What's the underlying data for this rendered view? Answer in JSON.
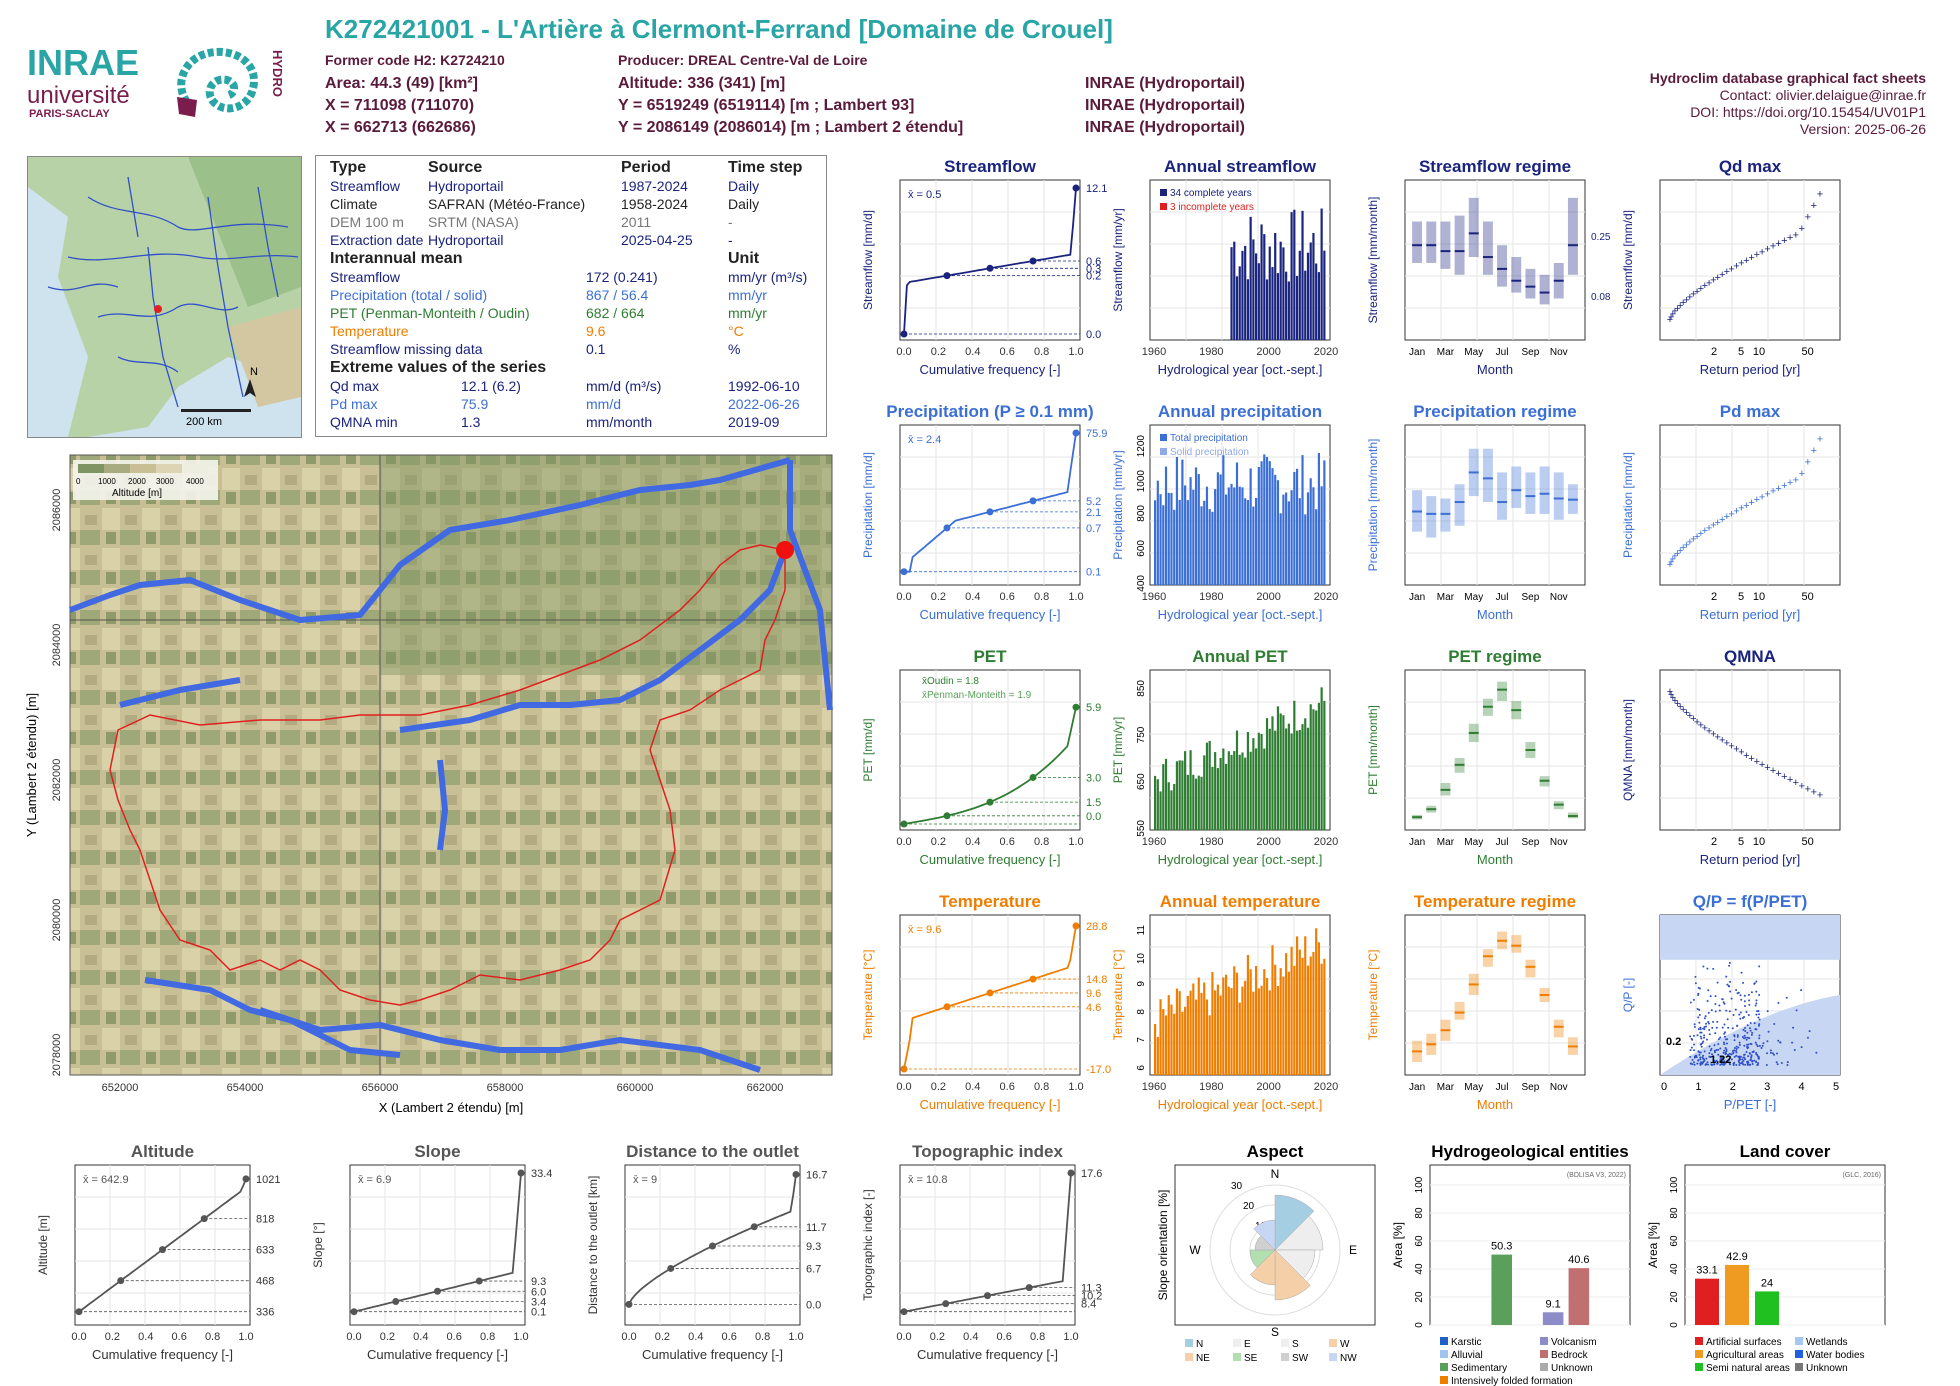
{
  "header": {
    "title": "K272421001 - L'Artière à Clermont-Ferrand [Domaine de Crouel]",
    "former_code": "Former code H2: K2724210",
    "producer": "Producer: DREAL Centre-Val de Loire",
    "area": "Area: 44.3 (49) [km²]",
    "x_l93": "X = 711098 (711070)",
    "x_l2": "X = 662713 (662686)",
    "altitude": "Altitude: 336 (341) [m]",
    "y_l93": "Y = 6519249 (6519114) [m ; Lambert 93]",
    "y_l2": "Y = 2086149 (2086014) [m ; Lambert 2 étendu]",
    "src1": "INRAE (Hydroportail)",
    "src2": "INRAE (Hydroportail)",
    "src3": "INRAE (Hydroportail)"
  },
  "logos": {
    "inrae": "INRAE",
    "univ": "université",
    "paris": "PARIS-SACLAY",
    "hydro": "HYDRO"
  },
  "fact_sheet": {
    "line1": "Hydroclim database graphical fact sheets",
    "line2": "Contact: olivier.delaigue@inrae.fr",
    "line3": "DOI: https://doi.org/10.15454/UV01P1",
    "line4": "Version: 2025-06-26"
  },
  "info_table": {
    "head": [
      "Type",
      "Source",
      "Period",
      "Time step"
    ],
    "rows": [
      [
        "Streamflow",
        "Hydroportail",
        "1987-2024",
        "Daily"
      ],
      [
        "Climate",
        "SAFRAN (Météo-France)",
        "1958-2024",
        "Daily"
      ],
      [
        "DEM 100 m",
        "SRTM (NASA)",
        "2011",
        "-"
      ],
      [
        "Extraction date",
        "Hydroportail",
        "2025-04-25",
        "-"
      ]
    ],
    "mean_title": "Interannual mean",
    "unit_title": "Unit",
    "means": [
      [
        "Streamflow",
        "172 (0.241)",
        "mm/yr (m³/s)"
      ],
      [
        "Precipitation (total / solid)",
        "867 / 56.4",
        "mm/yr"
      ],
      [
        "PET (Penman-Monteith / Oudin)",
        "682 / 664",
        "mm/yr"
      ],
      [
        "Temperature",
        "9.6",
        "°C"
      ],
      [
        "Streamflow missing data",
        "0.1",
        "%"
      ]
    ],
    "extreme_title": "Extreme values of the series",
    "extremes": [
      [
        "Qd max",
        "12.1 (6.2)",
        "mm/d (m³/s)",
        "1992-06-10"
      ],
      [
        "Pd max",
        "75.9",
        "mm/d",
        "2022-06-26"
      ],
      [
        "QMNA min",
        "1.3",
        "mm/month",
        "2019-09"
      ]
    ]
  },
  "inset_map": {
    "north": "N",
    "scale": "200 km"
  },
  "main_map": {
    "xlabel": "X (Lambert 2 étendu) [m]",
    "ylabel": "Y (Lambert 2 étendu) [m]",
    "xticks": [
      "652000",
      "654000",
      "656000",
      "658000",
      "660000",
      "662000"
    ],
    "yticks": [
      "2078000",
      "2080000",
      "2082000",
      "2084000",
      "2086000"
    ],
    "legend_ticks": [
      "0",
      "1000",
      "2000",
      "3000",
      "4000"
    ],
    "legend_title": "Altitude [m]"
  },
  "colors": {
    "flow": "#1a237e",
    "precip": "#3b6fd6",
    "pet": "#2e7d32",
    "temp": "#ef7d00",
    "river": "#4169e1",
    "basin": "#e02020"
  },
  "chart_data": [
    {
      "id": "streamflow",
      "type": "line",
      "title": "Streamflow",
      "xlabel": "Cumulative frequency [-]",
      "ylabel": "Streamflow [mm/d]",
      "log": true,
      "mean": "x̄ = 0.5",
      "right_ticks": [
        "12.1",
        "0.6",
        "0.3",
        "0.2",
        "0.0"
      ],
      "xticks": [
        "0.0",
        "0.2",
        "0.4",
        "0.6",
        "0.8",
        "1.0"
      ],
      "color": "#1a237e"
    },
    {
      "id": "annual_streamflow",
      "type": "bar",
      "title": "Annual streamflow",
      "xlabel": "Hydrological year [oct.-sept.]",
      "ylabel": "Streamflow [mm/yr]",
      "ylim": [
        0,
        350
      ],
      "xticks": [
        "1960",
        "1980",
        "2000",
        "2020"
      ],
      "legend": [
        "34 complete years",
        "3 incomplete years"
      ],
      "color": "#1a237e"
    },
    {
      "id": "streamflow_regime",
      "type": "box",
      "title": "Streamflow regime",
      "xlabel": "Month",
      "ylabel": "Streamflow [mm/month]",
      "months": [
        "Jan",
        "Mar",
        "May",
        "Jul",
        "Sep",
        "Nov"
      ],
      "right_ticks": [
        "0.25",
        "0.08"
      ],
      "color": "#1a237e",
      "values": [
        [
          12,
          15,
          19
        ],
        [
          12,
          15,
          19
        ],
        [
          11,
          14,
          19
        ],
        [
          10,
          14,
          20
        ],
        [
          13,
          17,
          23
        ],
        [
          10,
          13,
          19
        ],
        [
          8,
          11,
          15
        ],
        [
          7,
          9,
          13
        ],
        [
          6,
          8,
          11
        ],
        [
          5,
          7,
          10
        ],
        [
          6,
          9,
          12
        ],
        [
          10,
          15,
          23
        ]
      ]
    },
    {
      "id": "qd_max",
      "type": "scatter",
      "title": "Qd max",
      "xlabel": "Return period [yr]",
      "ylabel": "Streamflow [mm/d]",
      "color": "#1a237e",
      "xticks": [
        "2",
        "5",
        "10",
        "50"
      ]
    },
    {
      "id": "precip",
      "type": "line",
      "title": "Precipitation (P ≥ 0.1 mm)",
      "xlabel": "Cumulative frequency [-]",
      "ylabel": "Precipitation [mm/d]",
      "mean": "x̄ = 2.4",
      "right_ticks": [
        "75.9",
        "5.2",
        "2.1",
        "0.7",
        "0.1"
      ],
      "xticks": [
        "0.0",
        "0.2",
        "0.4",
        "0.6",
        "0.8",
        "1.0"
      ],
      "color": "#3b6fd6"
    },
    {
      "id": "annual_precip",
      "type": "bar",
      "title": "Annual precipitation",
      "xlabel": "Hydrological year [oct.-sept.]",
      "ylabel": "Precipitation [mm/yr]",
      "yticks": [
        "400",
        "600",
        "800",
        "1000",
        "1200"
      ],
      "xticks": [
        "1960",
        "1980",
        "2000",
        "2020"
      ],
      "legend": [
        "Total precipitation",
        "Solid precipitation"
      ],
      "color": "#3b6fd6"
    },
    {
      "id": "precip_regime",
      "type": "box",
      "title": "Precipitation regime",
      "xlabel": "Month",
      "ylabel": "Precipitation [mm/month]",
      "months": [
        "Jan",
        "Mar",
        "May",
        "Jul",
        "Sep",
        "Nov"
      ],
      "color": "#3b6fd6",
      "values": [
        [
          40,
          57,
          75
        ],
        [
          35,
          55,
          70
        ],
        [
          40,
          55,
          68
        ],
        [
          45,
          65,
          80
        ],
        [
          70,
          90,
          110
        ],
        [
          65,
          85,
          110
        ],
        [
          50,
          65,
          90
        ],
        [
          60,
          75,
          95
        ],
        [
          55,
          70,
          90
        ],
        [
          55,
          72,
          95
        ],
        [
          50,
          68,
          90
        ],
        [
          55,
          67,
          80
        ]
      ]
    },
    {
      "id": "pd_max",
      "type": "scatter",
      "title": "Pd max",
      "xlabel": "Return period [yr]",
      "ylabel": "Precipitation [mm/d]",
      "color": "#3b6fd6",
      "xticks": [
        "2",
        "5",
        "10",
        "50"
      ]
    },
    {
      "id": "pet",
      "type": "line",
      "title": "PET",
      "xlabel": "Cumulative frequency [-]",
      "ylabel": "PET [mm/d]",
      "mean1": "x̄Oudin = 1.8",
      "mean2": "x̄Penman-Monteith = 1.9",
      "right_ticks": [
        "5.9",
        "3.0",
        "1.5",
        "0.0"
      ],
      "xticks": [
        "0.0",
        "0.2",
        "0.4",
        "0.6",
        "0.8",
        "1.0"
      ],
      "color": "#2e7d32"
    },
    {
      "id": "annual_pet",
      "type": "bar",
      "title": "Annual PET",
      "xlabel": "Hydrological year [oct.-sept.]",
      "ylabel": "PET [mm/yr]",
      "yticks": [
        "550",
        "650",
        "750",
        "850"
      ],
      "xticks": [
        "1960",
        "1980",
        "2000",
        "2020"
      ],
      "color": "#2e7d32"
    },
    {
      "id": "pet_regime",
      "type": "box",
      "title": "PET regime",
      "xlabel": "Month",
      "ylabel": "PET [mm/month]",
      "months": [
        "Jan",
        "Mar",
        "May",
        "Jul",
        "Sep",
        "Nov"
      ],
      "color": "#2e7d32",
      "values": [
        [
          4,
          6,
          8
        ],
        [
          10,
          13,
          16
        ],
        [
          25,
          30,
          36
        ],
        [
          45,
          52,
          58
        ],
        [
          72,
          80,
          88
        ],
        [
          95,
          103,
          110
        ],
        [
          108,
          118,
          125
        ],
        [
          92,
          100,
          108
        ],
        [
          58,
          65,
          72
        ],
        [
          33,
          38,
          42
        ],
        [
          13,
          17,
          20
        ],
        [
          5,
          7,
          10
        ]
      ]
    },
    {
      "id": "qmna",
      "type": "scatter",
      "title": "QMNA",
      "xlabel": "Return period [yr]",
      "ylabel": "QMNA [mm/month]",
      "color": "#1a237e",
      "xticks": [
        "2",
        "5",
        "10",
        "50"
      ]
    },
    {
      "id": "temp",
      "type": "line",
      "title": "Temperature",
      "xlabel": "Cumulative frequency [-]",
      "ylabel": "Temperature [°C]",
      "mean": "x̄ = 9.6",
      "right_ticks": [
        "28.8",
        "14.8",
        "9.6",
        "4.6",
        "-17.0"
      ],
      "xticks": [
        "0.0",
        "0.2",
        "0.4",
        "0.6",
        "0.8",
        "1.0"
      ],
      "color": "#ef7d00"
    },
    {
      "id": "annual_temp",
      "type": "bar",
      "title": "Annual temperature",
      "xlabel": "Hydrological year [oct.-sept.]",
      "ylabel": "Temperature [°C]",
      "yticks": [
        "6",
        "7",
        "8",
        "9",
        "10",
        "11"
      ],
      "xticks": [
        "1960",
        "1980",
        "2000",
        "2020"
      ],
      "color": "#ef7d00"
    },
    {
      "id": "temp_regime",
      "type": "box",
      "title": "Temperature regime",
      "xlabel": "Month",
      "ylabel": "Temperature [°C]",
      "months": [
        "Jan",
        "Mar",
        "May",
        "Jul",
        "Sep",
        "Nov"
      ],
      "color": "#ef7d00",
      "values": [
        [
          1,
          2.5,
          4
        ],
        [
          2,
          3.5,
          5
        ],
        [
          4,
          5.5,
          7
        ],
        [
          7,
          8,
          9.5
        ],
        [
          10.5,
          12,
          13.5
        ],
        [
          14.5,
          16,
          17
        ],
        [
          17,
          18.2,
          19.5
        ],
        [
          16.5,
          17.5,
          19
        ],
        [
          13,
          14.5,
          15.5
        ],
        [
          9.5,
          10.5,
          11.5
        ],
        [
          4.5,
          6,
          7
        ],
        [
          2,
          3.2,
          4.5
        ]
      ]
    },
    {
      "id": "qp_ppet",
      "type": "scatter",
      "title": "Q/P = f(P/PET)",
      "xlabel": "P/PET [-]",
      "ylabel": "Q/P [-]",
      "color": "#3b6fd6",
      "xticks": [
        "0",
        "1",
        "2",
        "3",
        "4",
        "5"
      ],
      "labels": [
        "0.2",
        "1.22"
      ]
    },
    {
      "id": "altitude",
      "type": "line",
      "title": "Altitude",
      "xlabel": "Cumulative frequency [-]",
      "ylabel": "Altitude [m]",
      "mean": "x̄ = 642.9",
      "right_ticks": [
        "1021",
        "818",
        "633",
        "468",
        "336"
      ],
      "xticks": [
        "0.0",
        "0.2",
        "0.4",
        "0.6",
        "0.8",
        "1.0"
      ],
      "color": "#555555"
    },
    {
      "id": "slope",
      "type": "line",
      "title": "Slope",
      "xlabel": "Cumulative frequency [-]",
      "ylabel": "Slope [°]",
      "mean": "x̄ = 6.9",
      "right_ticks": [
        "33.4",
        "9.3",
        "6.0",
        "3.4",
        "0.1"
      ],
      "xticks": [
        "0.0",
        "0.2",
        "0.4",
        "0.6",
        "0.8",
        "1.0"
      ],
      "color": "#555555"
    },
    {
      "id": "distance",
      "type": "line",
      "title": "Distance to the outlet",
      "xlabel": "Cumulative frequency [-]",
      "ylabel": "Distance to the outlet [km]",
      "mean": "x̄ = 9",
      "right_ticks": [
        "16.7",
        "11.7",
        "9.3",
        "6.7",
        "0.0"
      ],
      "xticks": [
        "0.0",
        "0.2",
        "0.4",
        "0.6",
        "0.8",
        "1.0"
      ],
      "color": "#555555"
    },
    {
      "id": "topo",
      "type": "line",
      "title": "Topographic index",
      "xlabel": "Cumulative frequency [-]",
      "ylabel": "Topographic index [-]",
      "mean": "x̄ = 10.8",
      "right_ticks": [
        "17.6",
        "11.3",
        "10.2",
        "8.4"
      ],
      "xticks": [
        "0.0",
        "0.2",
        "0.4",
        "0.6",
        "0.8",
        "1.0"
      ],
      "color": "#555555"
    },
    {
      "id": "aspect",
      "type": "pie",
      "title": "Aspect",
      "ylabel": "Slope orientation [%]",
      "directions": [
        "N",
        "E",
        "S",
        "W"
      ],
      "legend": [
        "N",
        "E",
        "S",
        "W",
        "NE",
        "SE",
        "SW",
        "NW"
      ],
      "rings": [
        "10",
        "20",
        "30"
      ]
    },
    {
      "id": "hydrogeo",
      "type": "bar",
      "title": "Hydrogeological entities",
      "ylabel": "Area [%]",
      "source": "(BDLISA V3, 2022)",
      "categories": [
        "Karstic",
        "Alluvial",
        "Sedimentary",
        "Intensively folded formation",
        "Volcanism",
        "Bedrock",
        "Unknown"
      ],
      "values": [
        0,
        0,
        50.3,
        0,
        9.1,
        40.6,
        0
      ],
      "labels": [
        "50.3",
        "9.1",
        "40.6"
      ],
      "yticks": [
        "0",
        "20",
        "40",
        "60",
        "80",
        "100"
      ]
    },
    {
      "id": "landcover",
      "type": "bar",
      "title": "Land cover",
      "ylabel": "Area [%]",
      "source": "(GLC, 2016)",
      "categories": [
        "Artificial surfaces",
        "Agricultural areas",
        "Semi natural areas",
        "Wetlands",
        "Water bodies",
        "Unknown"
      ],
      "values": [
        33.1,
        42.9,
        24,
        0,
        0,
        0
      ],
      "labels": [
        "33.1",
        "42.9",
        "24"
      ],
      "yticks": [
        "0",
        "20",
        "40",
        "60",
        "80",
        "100"
      ]
    }
  ]
}
